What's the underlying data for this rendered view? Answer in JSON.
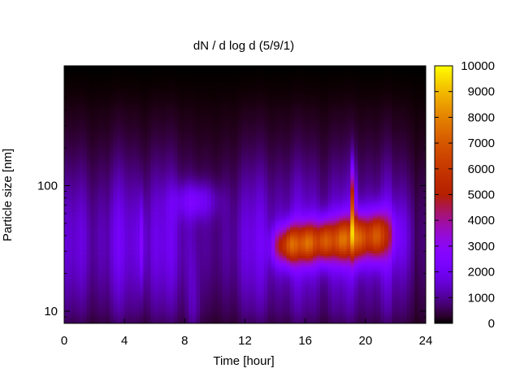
{
  "chart_data": {
    "type": "heatmap",
    "title": "dN / d log d (5/9/1)",
    "xlabel": "Time [hour]",
    "ylabel": "Particle size [nm]",
    "xlim": [
      0,
      24
    ],
    "ylim": [
      8,
      900
    ],
    "y_scale": "log",
    "x_ticks": [
      0,
      4,
      8,
      12,
      16,
      20,
      24
    ],
    "x_tick_labels": [
      "0",
      "4",
      "8",
      "12",
      "16",
      "20",
      "24"
    ],
    "y_ticks": [
      10,
      100
    ],
    "y_tick_labels": [
      "10",
      "100"
    ],
    "colorbar": {
      "range": [
        0,
        10000
      ],
      "ticks": [
        0,
        1000,
        2000,
        3000,
        4000,
        5000,
        6000,
        7000,
        8000,
        9000,
        10000
      ],
      "tick_labels": [
        "0",
        "1000",
        "2000",
        "3000",
        "4000",
        "5000",
        "6000",
        "7000",
        "8000",
        "9000",
        "10000"
      ],
      "colormap": "gnuplot (black-purple-red-yellow)"
    },
    "features": [
      {
        "time_start": 13.8,
        "time_end": 21.5,
        "size_low": 19,
        "size_high": 60,
        "peak_value": 7000
      },
      {
        "time_start": 19.1,
        "time_end": 19.3,
        "size_low": 40,
        "size_high": 200,
        "peak_value": 9000
      },
      {
        "time_start": 7.5,
        "time_end": 9.5,
        "size_low": 60,
        "size_high": 95,
        "peak_value": 3800
      },
      {
        "time_start": 5.0,
        "time_end": 5.3,
        "size_low": 20,
        "size_high": 60,
        "peak_value": 3300
      }
    ],
    "grid": false,
    "legend": "colorbar-right"
  }
}
